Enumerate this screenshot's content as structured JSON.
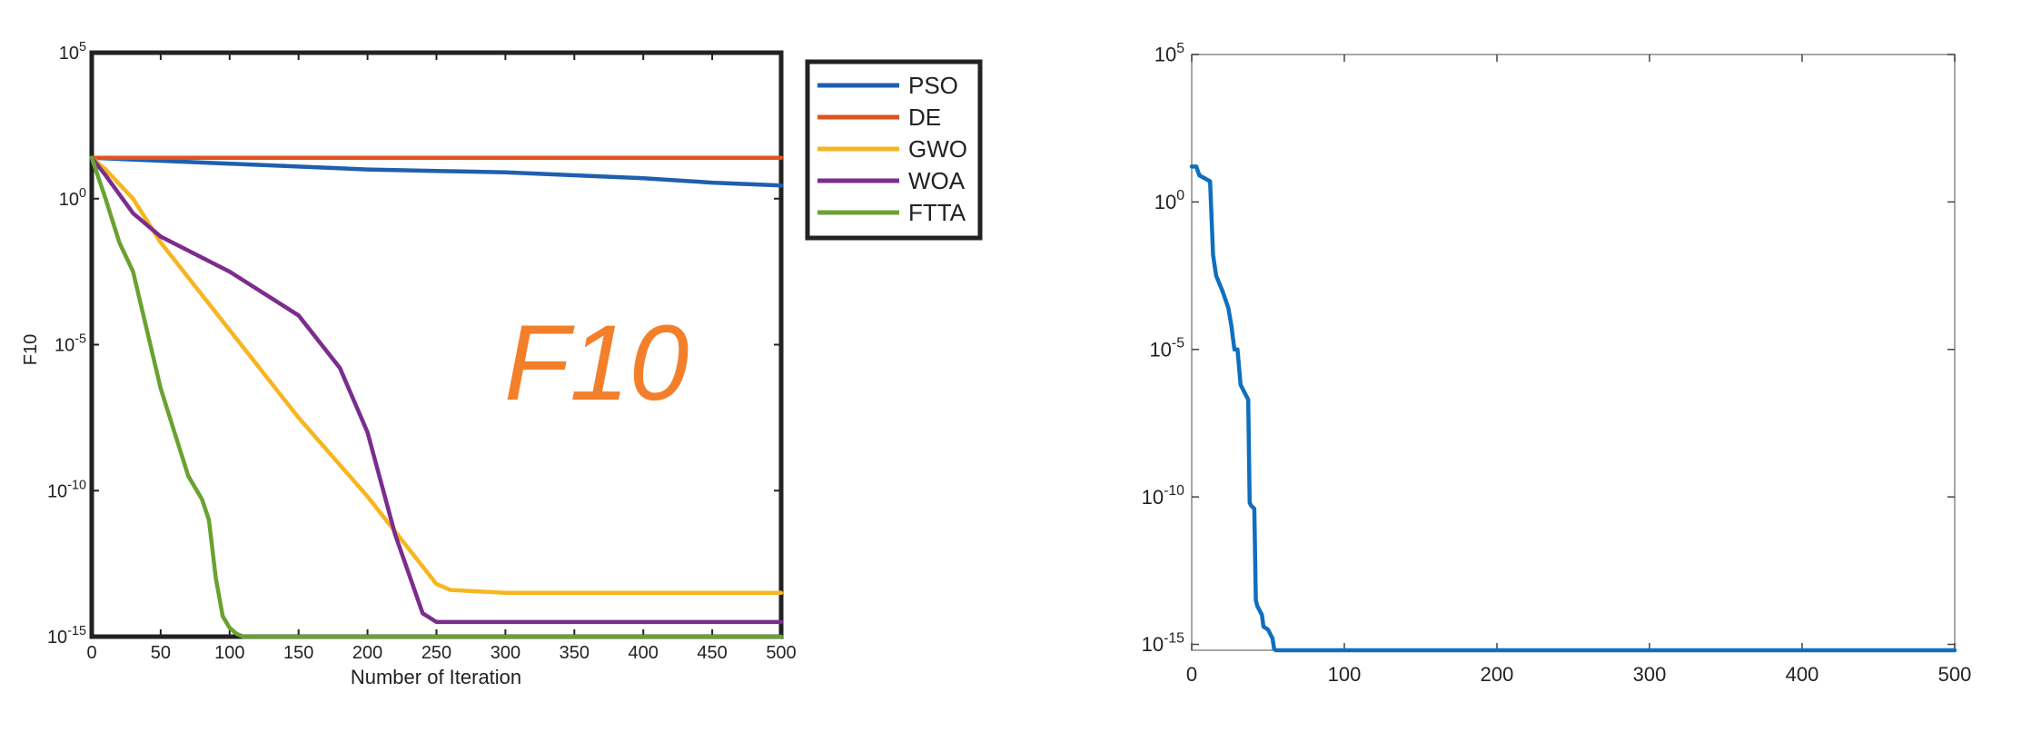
{
  "chart_data": [
    {
      "type": "line",
      "scale_y": "log",
      "xlim": [
        0,
        500
      ],
      "ylim_exponents": [
        -15,
        5
      ],
      "xticks": [
        0,
        50,
        100,
        150,
        200,
        250,
        300,
        350,
        400,
        450,
        500
      ],
      "yticks": [
        {
          "base": "10",
          "exp": "-15"
        },
        {
          "base": "10",
          "exp": "-10"
        },
        {
          "base": "10",
          "exp": "-5"
        },
        {
          "base": "10",
          "exp": "0"
        },
        {
          "base": "10",
          "exp": "5"
        }
      ],
      "xlabel": "Number of Iteration",
      "ylabel": "F10",
      "annotation": "F10",
      "annotation_color": "#f47f2a",
      "legend_position": "outside-right-top",
      "grid": false,
      "series": [
        {
          "name": "PSO",
          "color": "#1f5fae",
          "x": [
            0,
            50,
            100,
            150,
            200,
            250,
            300,
            350,
            400,
            450,
            500
          ],
          "log10_y": [
            1.4,
            1.3,
            1.2,
            1.1,
            1.0,
            0.95,
            0.9,
            0.8,
            0.7,
            0.55,
            0.45
          ]
        },
        {
          "name": "DE",
          "color": "#e0521f",
          "x": [
            0,
            100,
            200,
            300,
            400,
            500
          ],
          "log10_y": [
            1.4,
            1.4,
            1.4,
            1.4,
            1.4,
            1.4
          ]
        },
        {
          "name": "GWO",
          "color": "#f7b520",
          "x": [
            0,
            10,
            30,
            50,
            100,
            150,
            200,
            250,
            260,
            300,
            400,
            500
          ],
          "log10_y": [
            1.4,
            1.0,
            0.0,
            -1.5,
            -4.5,
            -7.5,
            -10.2,
            -13.2,
            -13.4,
            -13.5,
            -13.5,
            -13.5
          ]
        },
        {
          "name": "WOA",
          "color": "#7b2d8e",
          "x": [
            0,
            10,
            30,
            50,
            100,
            150,
            180,
            200,
            220,
            240,
            250,
            300,
            400,
            500
          ],
          "log10_y": [
            1.4,
            0.8,
            -0.5,
            -1.3,
            -2.5,
            -4.0,
            -5.8,
            -8.0,
            -11.5,
            -14.2,
            -14.5,
            -14.5,
            -14.5,
            -14.5
          ]
        },
        {
          "name": "FTTA",
          "color": "#6aa232",
          "x": [
            0,
            10,
            20,
            30,
            40,
            50,
            60,
            70,
            80,
            85,
            90,
            95,
            100,
            105,
            110,
            130,
            200,
            300,
            400,
            500
          ],
          "log10_y": [
            1.4,
            0.0,
            -1.5,
            -2.5,
            -4.5,
            -6.5,
            -8.0,
            -9.5,
            -10.3,
            -11.0,
            -13.0,
            -14.3,
            -14.7,
            -14.9,
            -15.0,
            -15.0,
            -15.0,
            -15.0,
            -15.0,
            -15.0
          ]
        }
      ]
    },
    {
      "type": "line",
      "scale_y": "log",
      "xlim": [
        0,
        500
      ],
      "ylim_exponents": [
        -15.2,
        5
      ],
      "xticks": [
        0,
        100,
        200,
        300,
        400,
        500
      ],
      "yticks": [
        {
          "base": "10",
          "exp": "-15"
        },
        {
          "base": "10",
          "exp": "-10"
        },
        {
          "base": "10",
          "exp": "-5"
        },
        {
          "base": "10",
          "exp": "0"
        },
        {
          "base": "10",
          "exp": "5"
        }
      ],
      "grid": false,
      "series": [
        {
          "color": "#0f6fbf",
          "x": [
            0,
            3,
            5,
            12,
            13,
            14,
            16,
            20,
            22,
            24,
            26,
            28,
            30,
            32,
            35,
            37,
            38,
            39,
            41,
            42,
            43,
            46,
            47,
            50,
            51,
            53,
            54,
            55,
            500
          ],
          "log10_y": [
            1.2,
            1.2,
            0.9,
            0.7,
            -0.5,
            -1.8,
            -2.5,
            -3.0,
            -3.3,
            -3.6,
            -4.2,
            -5.0,
            -5.0,
            -6.2,
            -6.5,
            -6.7,
            -10.2,
            -10.3,
            -10.4,
            -13.5,
            -13.7,
            -14.0,
            -14.4,
            -14.5,
            -14.6,
            -14.8,
            -15.15,
            -15.2,
            -15.2
          ]
        }
      ]
    }
  ],
  "legend": {
    "entries": [
      "PSO",
      "DE",
      "GWO",
      "WOA",
      "FTTA"
    ]
  }
}
